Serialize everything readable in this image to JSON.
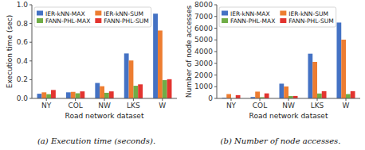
{
  "chart_data": [
    {
      "type": "bar",
      "title": "(a) Execution time (seconds).",
      "xlabel": "Road network dataset",
      "ylabel": "Execution time (sec)",
      "categories": [
        "NY",
        "COL",
        "NW",
        "LKS",
        "W"
      ],
      "series": [
        {
          "name": "IER-kNN-MAX",
          "color": "#4472c4",
          "values": [
            0.05,
            0.065,
            0.165,
            0.48,
            0.905
          ]
        },
        {
          "name": "IER-kNN-SUM",
          "color": "#ed7d31",
          "values": [
            0.065,
            0.07,
            0.13,
            0.405,
            0.725
          ]
        },
        {
          "name": "FANN-PHL-MAX",
          "color": "#70ad47",
          "values": [
            0.045,
            0.055,
            0.06,
            0.135,
            0.195
          ]
        },
        {
          "name": "FANN-PHL-SUM",
          "color": "#e3342f",
          "values": [
            0.09,
            0.075,
            0.075,
            0.15,
            0.205
          ]
        }
      ],
      "ylim": [
        0,
        1.0
      ],
      "yticks": [
        {
          "value": 0,
          "label": "0.0"
        },
        0.2,
        0.4,
        0.6,
        0.8,
        {
          "value": 1.0,
          "label": "1.0"
        }
      ],
      "grid": false,
      "legend": "upper left"
    },
    {
      "type": "bar",
      "title": "(b) Number of node accesses.",
      "xlabel": "Road network dataset",
      "ylabel": "Number of node accesses",
      "categories": [
        "NY",
        "COL",
        "NW",
        "LKS",
        "W"
      ],
      "series": [
        {
          "name": "IER-kNN-MAX",
          "color": "#4472c4",
          "values": [
            55,
            120,
            1260,
            3820,
            6480
          ]
        },
        {
          "name": "IER-kNN-SUM",
          "color": "#ed7d31",
          "values": [
            370,
            580,
            1020,
            3120,
            5020
          ]
        },
        {
          "name": "FANN-PHL-MAX",
          "color": "#70ad47",
          "values": [
            8,
            100,
            200,
            420,
            370
          ]
        },
        {
          "name": "FANN-PHL-SUM",
          "color": "#e3342f",
          "values": [
            280,
            430,
            210,
            620,
            620
          ]
        }
      ],
      "ylim": [
        0,
        8000
      ],
      "yticks": [
        0,
        1000,
        2000,
        3000,
        4000,
        5000,
        6000,
        7000,
        8000
      ],
      "grid": false,
      "legend": "upper left"
    }
  ]
}
